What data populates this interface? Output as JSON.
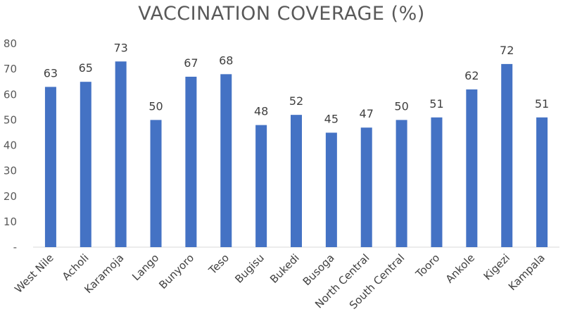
{
  "chart_data": {
    "type": "bar",
    "title": "VACCINATION COVERAGE (%)",
    "categories": [
      "West Nile",
      "Acholi",
      "Karamoja",
      "Lango",
      "Bunyoro",
      "Teso",
      "Bugisu",
      "Bukedi",
      "Busoga",
      "North Central",
      "South Central",
      "Tooro",
      "Ankole",
      "Kigezi",
      "Kampala"
    ],
    "values": [
      63,
      65,
      73,
      50,
      67,
      68,
      48,
      52,
      45,
      47,
      50,
      51,
      62,
      72,
      51
    ],
    "ylim": [
      0,
      80
    ],
    "yticks": [
      0,
      10,
      20,
      30,
      40,
      50,
      60,
      70,
      80
    ],
    "ytick_labels": [
      "-",
      "10",
      "20",
      "30",
      "40",
      "50",
      "60",
      "70",
      "80"
    ],
    "bar_color": "#4472C4",
    "data_labels": true,
    "grid": false
  }
}
